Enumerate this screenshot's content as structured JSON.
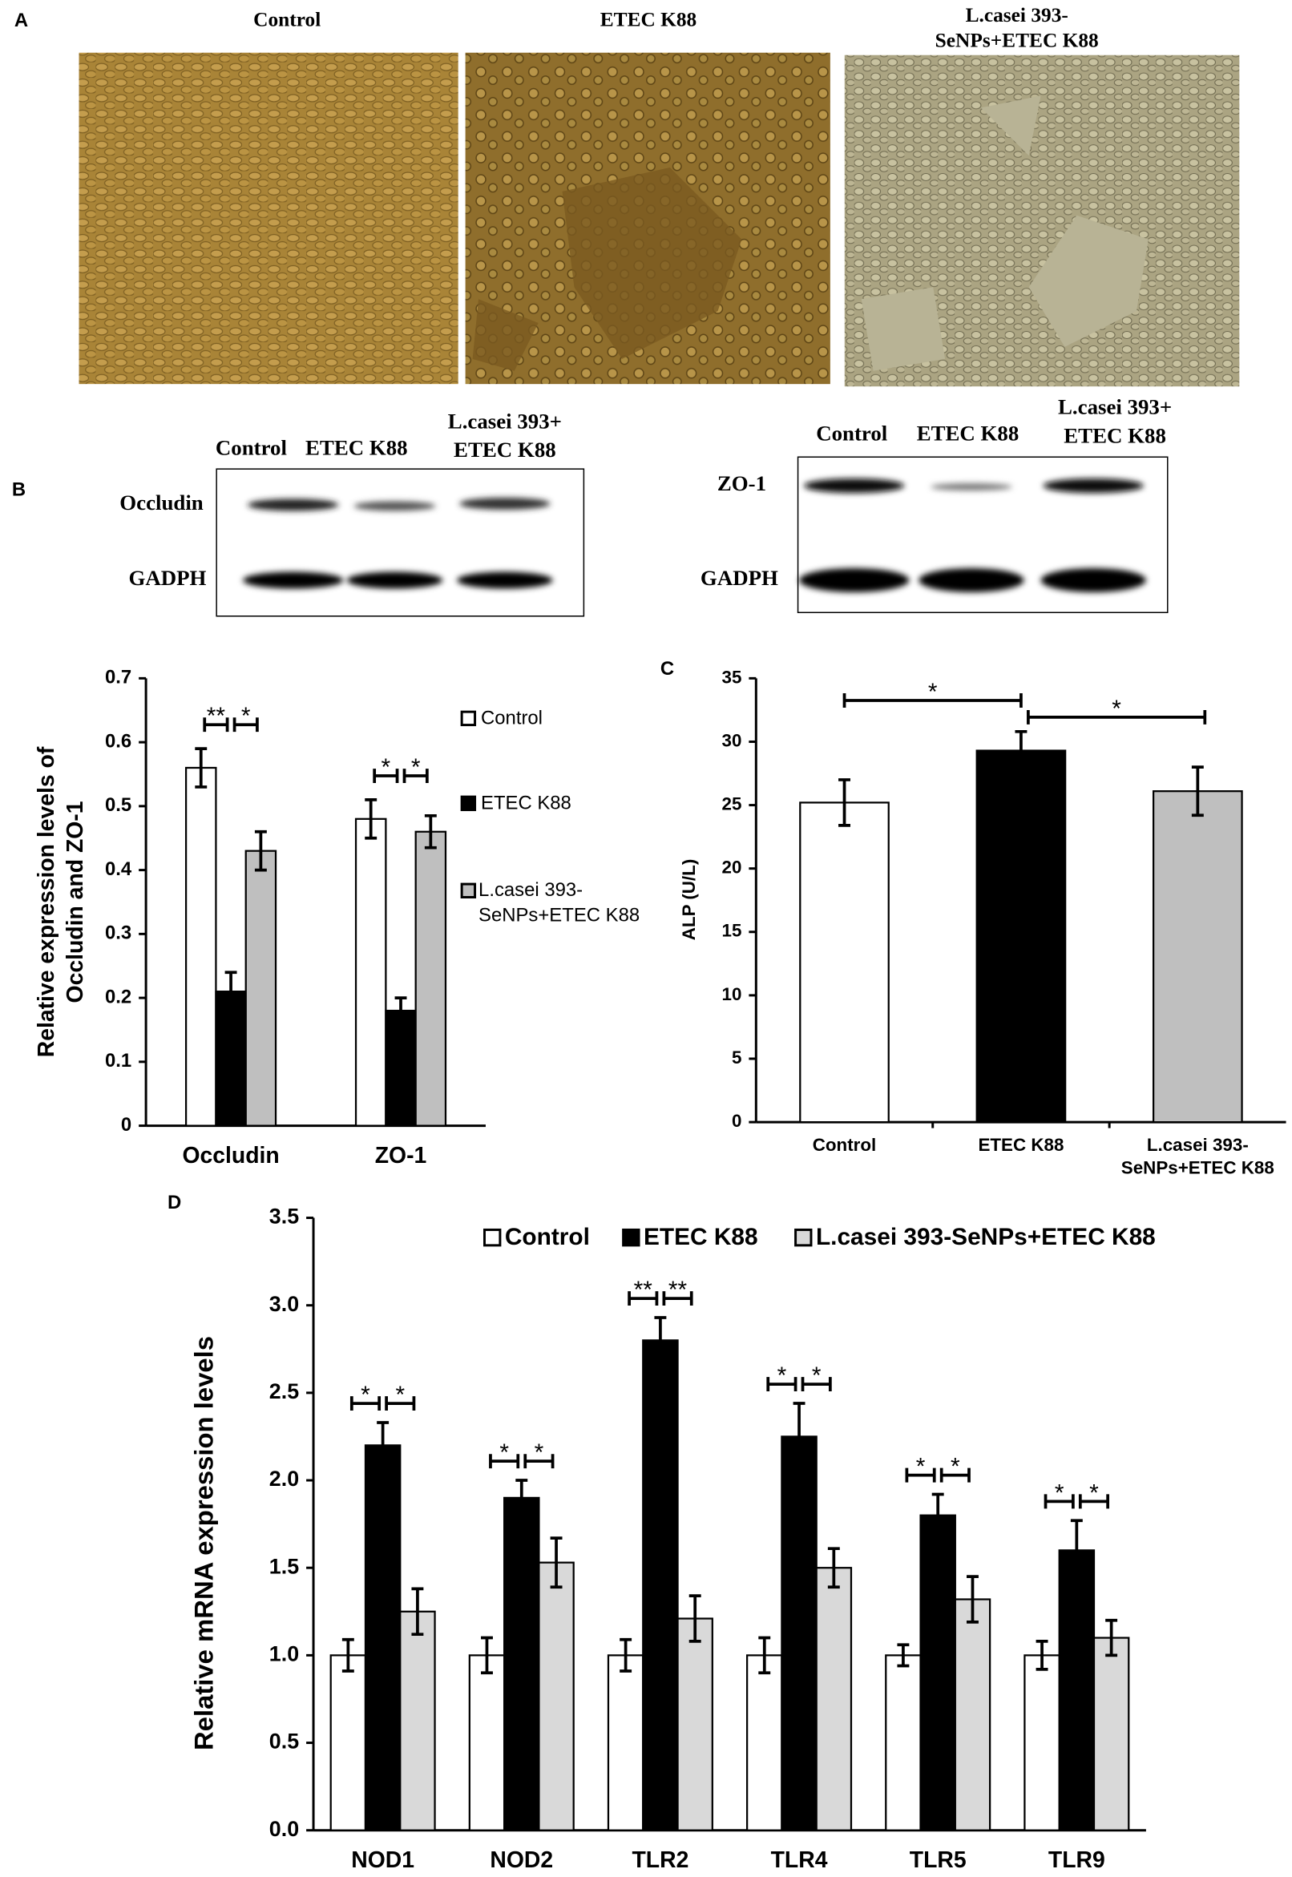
{
  "panel_labels": [
    "A",
    "B",
    "C",
    "D"
  ],
  "micrographs": {
    "titles": [
      "Control",
      "ETEC K88",
      "L.casei 393-SeNPs+ETEC K88"
    ]
  },
  "blots": [
    {
      "columns": [
        "Control",
        "ETEC K88",
        "L.casei 393+ ETEC K88"
      ],
      "rows": [
        "Occludin",
        "GADPH"
      ]
    },
    {
      "columns": [
        "Control",
        "ETEC K88",
        "L.casei 393+ ETEC K88"
      ],
      "rows": [
        "ZO-1",
        "GADPH"
      ]
    }
  ],
  "chart_data": [
    {
      "type": "bar",
      "ylabel": [
        "Relative expression levels of",
        "Occludin and ZO-1"
      ],
      "categories": [
        "Occludin",
        "ZO-1"
      ],
      "series": [
        {
          "name": "Control",
          "color": "#ffffff",
          "values": [
            0.56,
            0.48
          ],
          "errors": [
            0.03,
            0.03
          ]
        },
        {
          "name": "ETEC K88",
          "color": "#000000",
          "values": [
            0.21,
            0.18
          ],
          "errors": [
            0.03,
            0.02
          ]
        },
        {
          "name": "L.casei 393-SeNPs+ETEC K88",
          "color": "#bfbfbf",
          "values": [
            0.43,
            0.46
          ],
          "errors": [
            0.03,
            0.025
          ]
        }
      ],
      "ylim": [
        0,
        0.7
      ],
      "yticks": [
        0,
        0.1,
        0.2,
        0.3,
        0.4,
        0.5,
        0.6,
        0.7
      ],
      "significance": [
        [
          "**",
          "*"
        ],
        [
          "*",
          "*"
        ]
      ],
      "legend": "right"
    },
    {
      "type": "bar",
      "ylabel": "ALP (U/L)",
      "categories": [
        "Control",
        "ETEC K88",
        "L.casei 393-SeNPs+ETEC K88"
      ],
      "values": [
        25.2,
        29.3,
        26.1
      ],
      "errors": [
        1.8,
        1.5,
        1.9
      ],
      "colors": [
        "#ffffff",
        "#000000",
        "#bfbfbf"
      ],
      "ylim": [
        0,
        35
      ],
      "yticks": [
        0,
        5,
        10,
        15,
        20,
        25,
        30,
        35
      ],
      "significance": [
        "*",
        "*"
      ]
    },
    {
      "type": "bar",
      "ylabel": "Relative mRNA expression levels",
      "categories": [
        "NOD1",
        "NOD2",
        "TLR2",
        "TLR4",
        "TLR5",
        "TLR9"
      ],
      "series": [
        {
          "name": "Control",
          "color": "#ffffff",
          "values": [
            1.0,
            1.0,
            1.0,
            1.0,
            1.0,
            1.0
          ],
          "errors": [
            0.09,
            0.1,
            0.09,
            0.1,
            0.06,
            0.08
          ]
        },
        {
          "name": "ETEC K88",
          "color": "#000000",
          "values": [
            2.2,
            1.9,
            2.8,
            2.25,
            1.8,
            1.6
          ],
          "errors": [
            0.13,
            0.1,
            0.13,
            0.19,
            0.12,
            0.17
          ]
        },
        {
          "name": "L.casei 393-SeNPs+ETEC K88",
          "color": "#d9d9d9",
          "values": [
            1.25,
            1.53,
            1.21,
            1.5,
            1.32,
            1.1
          ],
          "errors": [
            0.13,
            0.14,
            0.13,
            0.11,
            0.13,
            0.1
          ]
        }
      ],
      "ylim": [
        0,
        3.5
      ],
      "yticks": [
        {
          "value": 0,
          "label": "0.0"
        },
        0.5,
        {
          "value": 1,
          "label": "1.0"
        },
        1.5,
        {
          "value": 2,
          "label": "2.0"
        },
        2.5,
        {
          "value": 3,
          "label": "3.0"
        },
        3.5
      ],
      "significance": [
        [
          "*",
          "*"
        ],
        [
          "*",
          "*"
        ],
        [
          "**",
          "**"
        ],
        [
          "*",
          "*"
        ],
        [
          "*",
          "*"
        ],
        [
          "*",
          "*"
        ]
      ],
      "legend": "top"
    }
  ]
}
